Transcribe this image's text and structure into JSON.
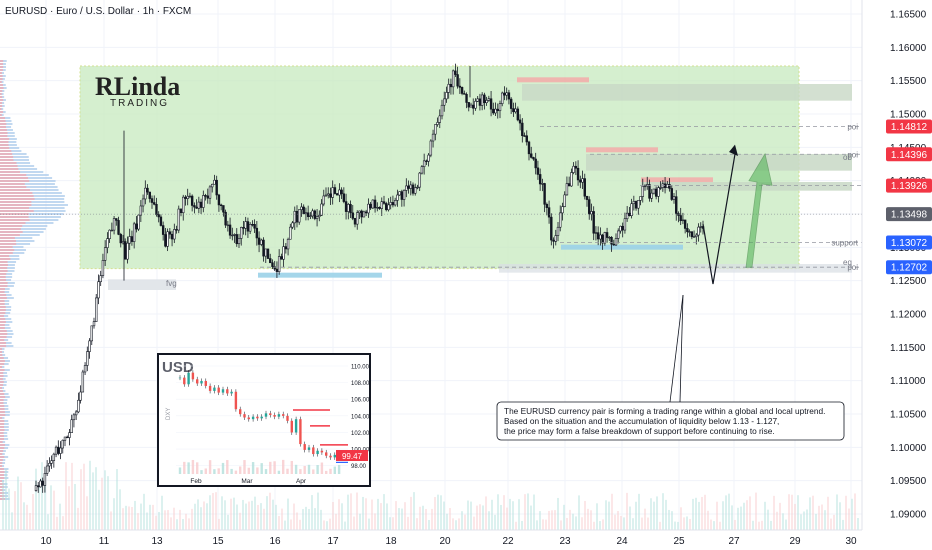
{
  "header": {
    "symbol_title": "EURUSD · Euro / U.S. Dollar · 1h · FXCM"
  },
  "logo": {
    "big": "RLinda",
    "small": "TRADING"
  },
  "price_axis": {
    "ticks": [
      "1.16500",
      "1.16000",
      "1.15500",
      "1.15000",
      "1.14500",
      "1.14000",
      "1.13500",
      "1.13000",
      "1.12500",
      "1.12000",
      "1.11500",
      "1.11000",
      "1.10500",
      "1.10000",
      "1.09500",
      "1.09000"
    ],
    "tags": [
      {
        "value": "1.14812",
        "color": "#f23645",
        "label": "poi"
      },
      {
        "value": "1.14396",
        "color": "#f23645",
        "label": "poi"
      },
      {
        "value": "1.13926",
        "color": "#f23645",
        "label": ""
      },
      {
        "value": "1.13498",
        "color": "#5d606b",
        "label": ""
      },
      {
        "value": "1.13072",
        "color": "#2962ff",
        "label": "support"
      },
      {
        "value": "1.12702",
        "color": "#2962ff",
        "label": "poi"
      }
    ]
  },
  "time_axis": {
    "ticks": [
      "10",
      "11",
      "13",
      "15",
      "16",
      "17",
      "18",
      "20",
      "22",
      "23",
      "24",
      "25",
      "27",
      "29",
      "30"
    ]
  },
  "zone_labels": {
    "fvg": "fvg",
    "ob": "ob",
    "eq": "eq"
  },
  "annotation": {
    "line1": "The EURUSD currency pair is forming a trading range within a global and local uptrend.",
    "line2": "Based on the situation and the accumulation of liquidity below 1.13 - 1.127,",
    "line3": "the price may form a false breakdown of support before continuing to rise."
  },
  "inset": {
    "title": "USD",
    "side_label": "DXY",
    "price_tag": "99.47",
    "y_ticks": [
      "110.00",
      "108.00",
      "106.00",
      "104.00",
      "102.00",
      "100.00",
      "98.00"
    ],
    "x_ticks": [
      "Feb",
      "Mar",
      "Apr"
    ]
  },
  "colors": {
    "up": "#26a69a",
    "down": "#ef5350",
    "candle_body": "#131722",
    "range_fill": "#c8eac0",
    "tag_red": "#f23645",
    "tag_blue": "#2962ff",
    "forecast_arrow": "#4caf50"
  },
  "chart_data": {
    "type": "candlestick",
    "title": "EURUSD · Euro / U.S. Dollar · 1h · FXCM",
    "ylim": [
      1.0885,
      1.1665
    ],
    "xlabels": [
      "10",
      "11",
      "13",
      "15",
      "16",
      "17",
      "18",
      "20",
      "22",
      "23",
      "24",
      "25",
      "27",
      "29",
      "30"
    ],
    "path_close": [
      1.0935,
      1.096,
      1.0995,
      1.101,
      1.106,
      1.112,
      1.1215,
      1.13,
      1.1345,
      1.129,
      1.133,
      1.139,
      1.136,
      1.131,
      1.133,
      1.138,
      1.1355,
      1.137,
      1.1395,
      1.134,
      1.131,
      1.1335,
      1.1325,
      1.129,
      1.1268,
      1.13,
      1.1345,
      1.136,
      1.1345,
      1.137,
      1.1385,
      1.1365,
      1.1345,
      1.1355,
      1.137,
      1.136,
      1.1375,
      1.138,
      1.139,
      1.142,
      1.148,
      1.153,
      1.156,
      1.152,
      1.151,
      1.1525,
      1.15,
      1.153,
      1.151,
      1.146,
      1.143,
      1.138,
      1.13,
      1.138,
      1.142,
      1.1395,
      1.133,
      1.1315,
      1.1305,
      1.1335,
      1.136,
      1.139,
      1.138,
      1.14,
      1.137,
      1.133,
      1.131,
      1.133
    ],
    "levels": {
      "poi_1": 1.14812,
      "poi_2": 1.14396,
      "resistance": 1.13926,
      "last": 1.13498,
      "support": 1.13072,
      "poi_3": 1.12702
    },
    "range_box": {
      "from": "10",
      "to": "29",
      "top": 1.1572,
      "bottom": 1.1268
    },
    "forecast": [
      1.1335,
      1.1245,
      1.142
    ]
  }
}
